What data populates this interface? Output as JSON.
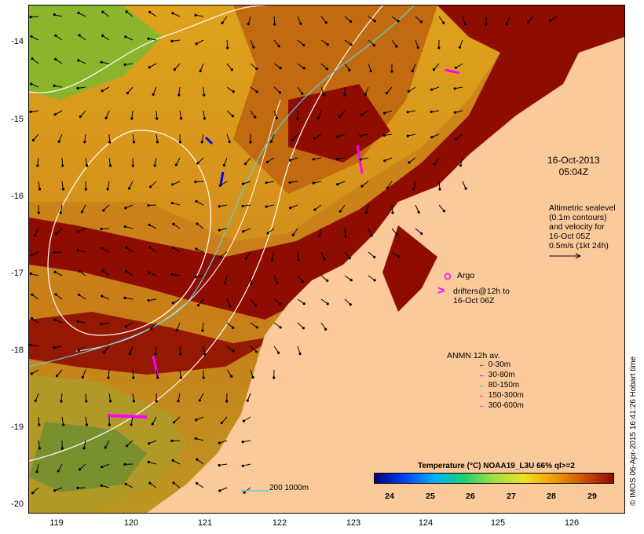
{
  "map": {
    "y_ticks": [
      "-14",
      "-15",
      "-16",
      "-17",
      "-18",
      "-19",
      "-20"
    ],
    "x_ticks": [
      "119",
      "120",
      "121",
      "122",
      "123",
      "124",
      "125",
      "126"
    ],
    "colors": {
      "land": "#fbc99a",
      "hot": "#8e0c00",
      "warm": "#c26a10",
      "mid": "#dfa21c",
      "cool": "#9bc63a",
      "cold": "#22b24a",
      "contour": "#5fd0d8"
    }
  },
  "timestamp": {
    "line1": "16-Oct-2013",
    "line2": "05:04Z"
  },
  "altimetry": {
    "lines": [
      "Altimetric sealevel",
      "(0.1m contours)",
      "and velocity for",
      "16-Oct 05Z",
      "0.5m/s (1kt 24h)"
    ]
  },
  "argo": {
    "label": "Argo"
  },
  "drifters": {
    "line1": "drifters@12h to",
    "line2": "16-Oct 06Z"
  },
  "anmn": {
    "title": "ANMN 12h av.",
    "rows": [
      {
        "label": "0-30m",
        "color": "#000000"
      },
      {
        "label": "30-80m",
        "color": "#0000ff"
      },
      {
        "label": "80-150m",
        "color": "#00c8c8"
      },
      {
        "label": "150-300m",
        "color": "#ff0000"
      },
      {
        "label": "300-600m",
        "color": "#ff00ff"
      }
    ]
  },
  "colorbar": {
    "title": "Temperature (°C) NOAA19_L3U 66% ql>=2",
    "ticks": [
      "24",
      "25",
      "26",
      "27",
      "28",
      "29"
    ],
    "stops": [
      "#00007a",
      "#0040ff",
      "#00b0ff",
      "#20d070",
      "#a0e040",
      "#f0e020",
      "#f0a000",
      "#d05000",
      "#8e0c00"
    ]
  },
  "scale": {
    "label": "200  1000m",
    "color": "#5fd0d8"
  },
  "credit": "© IMOS 06-Apr-2015 16:41:26 Hobart time"
}
